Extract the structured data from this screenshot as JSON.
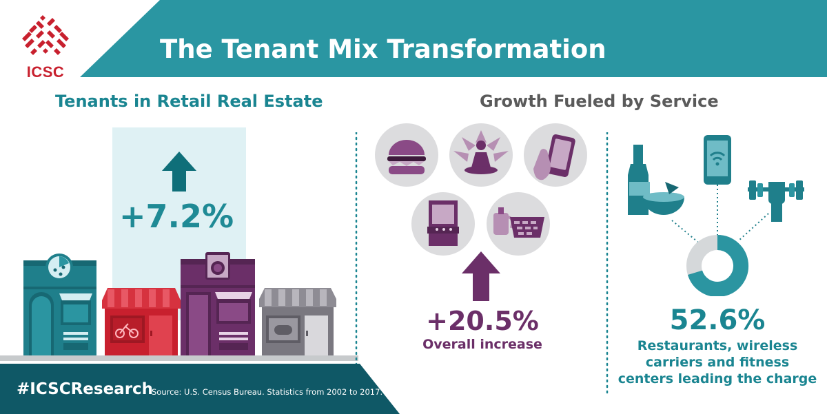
{
  "brand": {
    "logo_text": "ICSC"
  },
  "header": {
    "title": "The Tenant Mix Transformation"
  },
  "left_section": {
    "title": "Tenants in Retail Real Estate",
    "stat": "+7.2%"
  },
  "right_section": {
    "title": "Growth Fueled by Service"
  },
  "middle_panel": {
    "stat": "+20.5%",
    "caption": "Overall increase",
    "icons": [
      "burger-icon",
      "yoga-icon",
      "phone-in-hand-icon",
      "arcade-icon",
      "tea-and-basket-icon"
    ]
  },
  "right_panel": {
    "stat": "52.6%",
    "caption_lines": [
      "Restaurants, wireless",
      "carriers and fitness",
      "centers leading the charge"
    ],
    "icons": [
      "beer-and-bowl-icon",
      "wifi-phone-icon",
      "dumbbell-icon",
      "donut-chart-icon"
    ]
  },
  "footer": {
    "hashtag": "#ICSCResearch",
    "source": "Source: U.S. Census Bureau. Statistics from 2002 to 2017."
  },
  "colors": {
    "teal": "#2a96a2",
    "dark_teal": "#0f5866",
    "red": "#c8202e",
    "purple": "#6b2f68",
    "light_teal": "#dff1f4",
    "grey": "#7a7880"
  }
}
